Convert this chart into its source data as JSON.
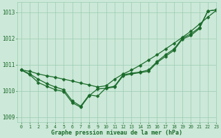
{
  "xlabel": "Graphe pression niveau de la mer (hPa)",
  "bg_color": "#cce8d8",
  "grid_color": "#99ccb0",
  "line_color": "#1a6b2a",
  "xlim": [
    -0.5,
    23
  ],
  "ylim": [
    1008.8,
    1013.4
  ],
  "yticks": [
    1009,
    1010,
    1011,
    1012,
    1013
  ],
  "xticks": [
    0,
    1,
    2,
    3,
    4,
    5,
    6,
    7,
    8,
    9,
    10,
    11,
    12,
    13,
    14,
    15,
    16,
    17,
    18,
    19,
    20,
    21,
    22,
    23
  ],
  "series1_x": [
    0,
    1,
    2,
    3,
    4,
    5,
    6,
    7,
    8,
    9,
    10,
    11,
    12,
    13,
    14,
    15,
    16,
    17,
    18,
    19,
    20,
    21,
    22,
    23
  ],
  "series1_y": [
    1010.8,
    1010.75,
    1010.65,
    1010.58,
    1010.52,
    1010.45,
    1010.38,
    1010.3,
    1010.23,
    1010.15,
    1010.2,
    1010.45,
    1010.65,
    1010.8,
    1010.98,
    1011.18,
    1011.38,
    1011.6,
    1011.82,
    1012.05,
    1012.28,
    1012.55,
    1012.82,
    1013.08
  ],
  "series2_x": [
    0,
    1,
    2,
    3,
    4,
    5,
    6,
    7,
    8,
    9,
    10,
    11,
    12,
    13,
    14,
    15,
    16,
    17,
    18,
    19,
    20,
    21,
    22,
    23
  ],
  "series2_y": [
    1010.8,
    1010.65,
    1010.45,
    1010.28,
    1010.15,
    1010.05,
    1009.62,
    1009.42,
    1009.85,
    1009.8,
    1010.12,
    1010.18,
    1010.62,
    1010.68,
    1010.72,
    1010.8,
    1011.12,
    1011.38,
    1011.6,
    1012.02,
    1012.18,
    1012.42,
    1013.05,
    1013.1
  ],
  "series3_x": [
    0,
    1,
    2,
    3,
    4,
    5,
    6,
    7,
    8,
    9,
    10,
    11,
    12,
    13,
    14,
    15,
    16,
    17,
    18,
    19,
    20,
    21,
    22,
    23
  ],
  "series3_y": [
    1010.8,
    1010.62,
    1010.32,
    1010.18,
    1010.05,
    1009.98,
    1009.55,
    1009.38,
    1009.82,
    1010.08,
    1010.1,
    1010.15,
    1010.58,
    1010.65,
    1010.7,
    1010.75,
    1011.08,
    1011.32,
    1011.55,
    1011.98,
    1012.12,
    1012.38,
    1013.05,
    1013.1
  ]
}
